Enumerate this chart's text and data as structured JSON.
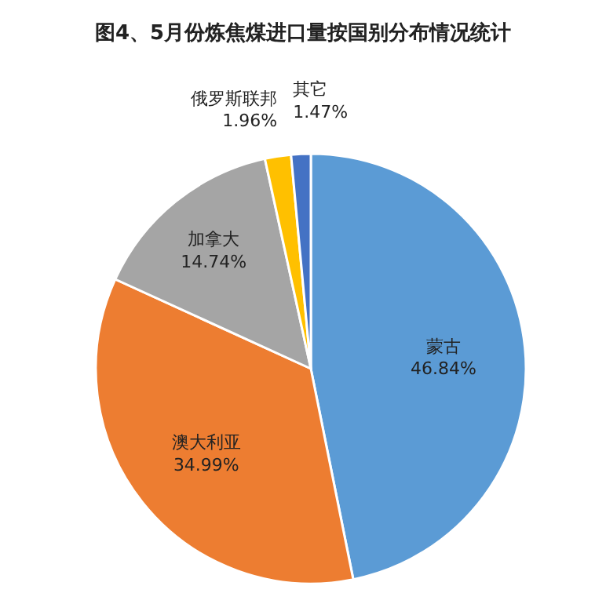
{
  "chart_data": {
    "type": "pie",
    "title": "图4、5月份炼焦煤进口量按国别分布情况统计",
    "categories": [
      "蒙古",
      "澳大利亚",
      "加拿大",
      "俄罗斯联邦",
      "其它"
    ],
    "values": [
      46.84,
      34.99,
      14.74,
      1.96,
      1.47
    ],
    "colors": [
      "#5b9bd5",
      "#ed7d31",
      "#a5a5a5",
      "#ffc000",
      "#4472c4"
    ],
    "value_labels": [
      "46.84%",
      "34.99%",
      "14.74%",
      "1.96%",
      "1.47%"
    ]
  }
}
